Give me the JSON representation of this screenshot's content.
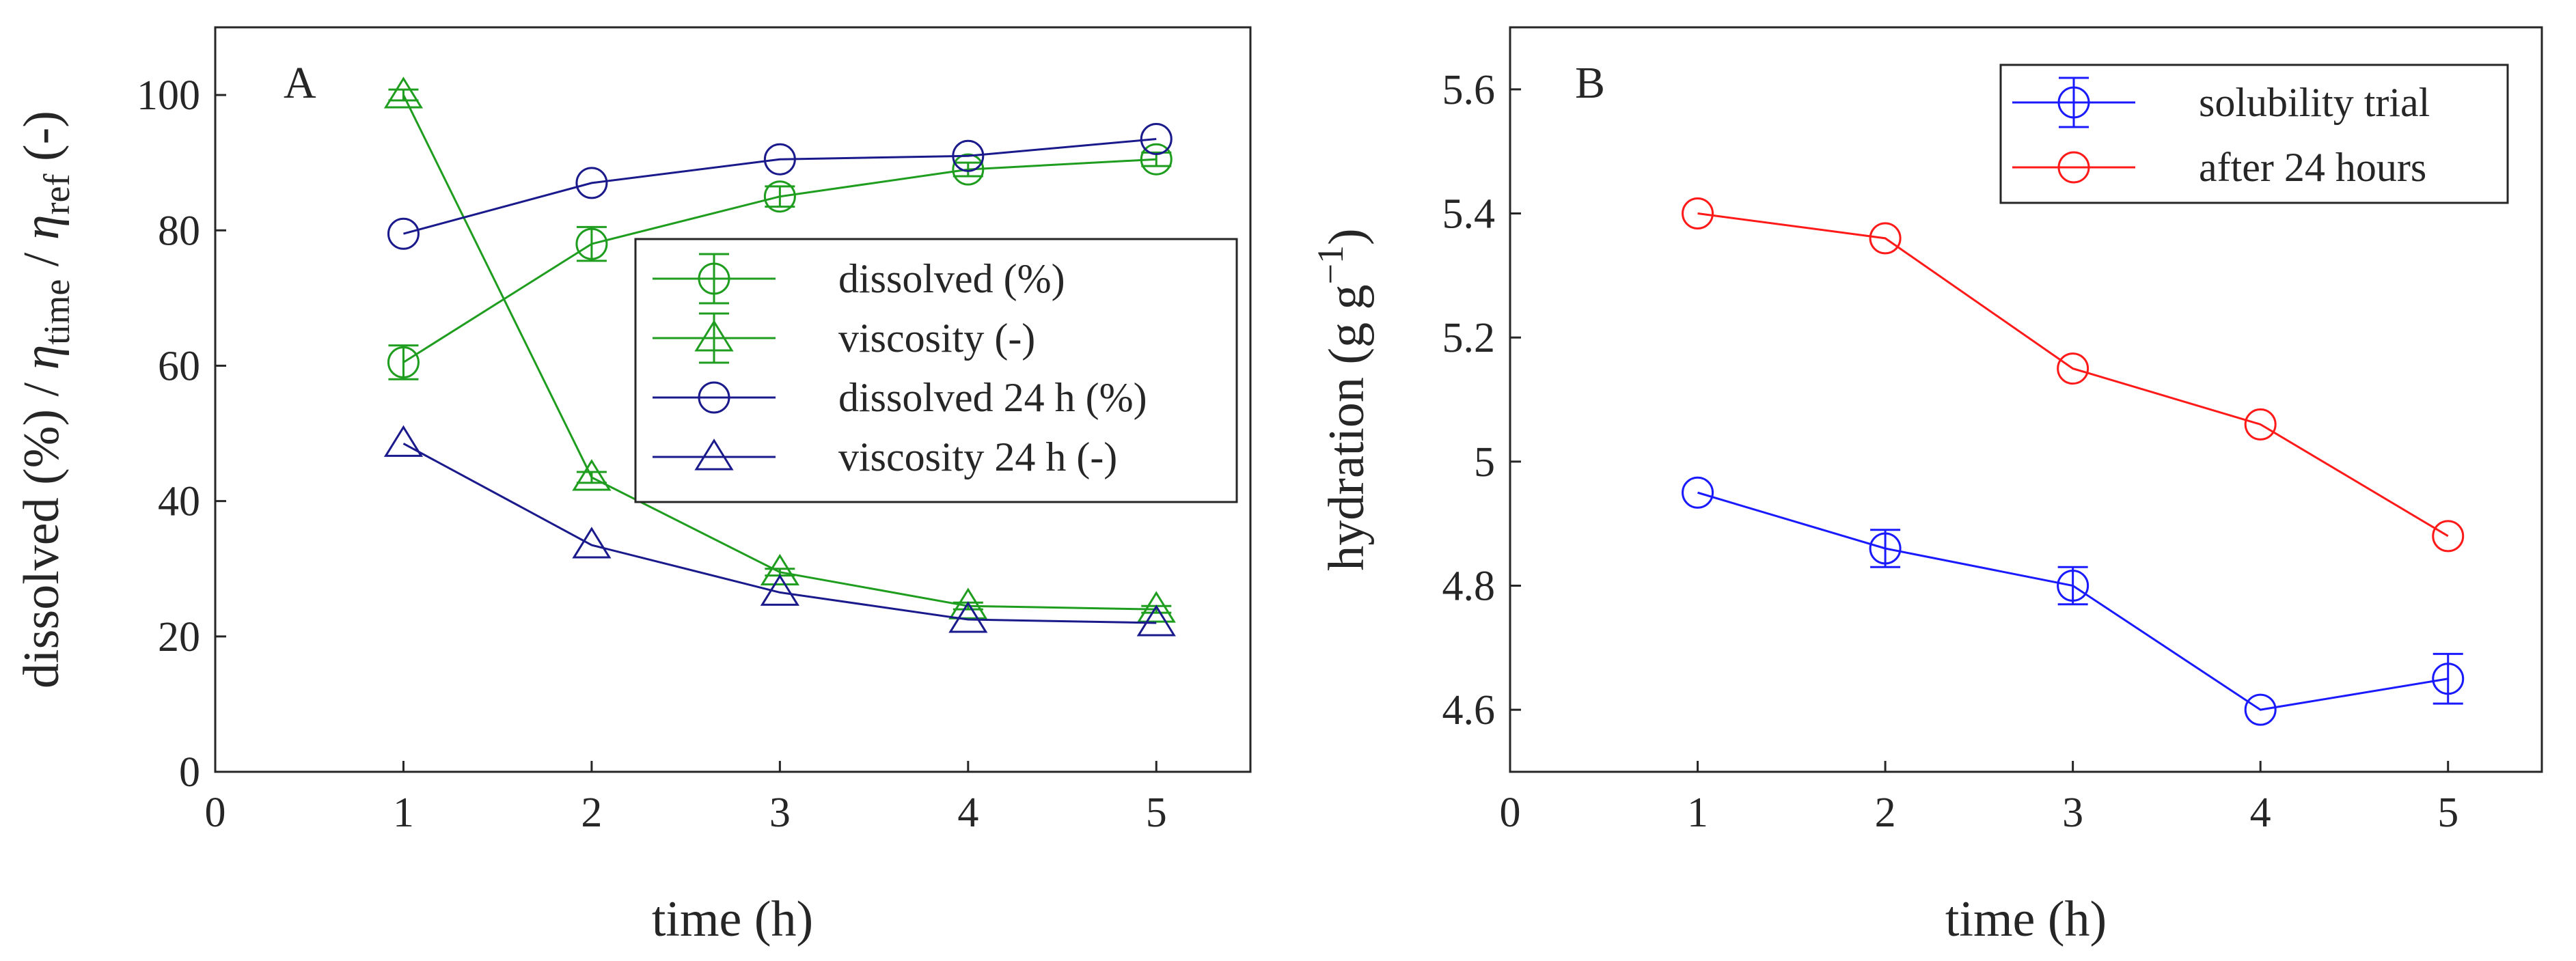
{
  "colors": {
    "green": "#1f9d1f",
    "navy": "#1a1a8c",
    "blue": "#1a1aff",
    "red": "#ff1a1a",
    "axis": "#262626"
  },
  "chart_data": [
    {
      "type": "line",
      "panel_label": "A",
      "xlabel": "time (h)",
      "ylabel": "dissolved (%) / η_time / η_ref (-)",
      "ylabel_parts": {
        "prefix": "dissolved (%) / ",
        "eta1": "η",
        "sub1": "time",
        "middle": " / ",
        "eta2": "η",
        "sub2": "ref",
        "suffix": " (-)"
      },
      "xlim": [
        0,
        5.5
      ],
      "ylim": [
        0,
        110
      ],
      "xticks": [
        "0",
        "1",
        "2",
        "3",
        "4",
        "5"
      ],
      "yticks": [
        "0",
        "20",
        "40",
        "60",
        "80",
        "100"
      ],
      "legend_position": "center-right",
      "x": [
        1,
        2,
        3,
        4,
        5
      ],
      "series": [
        {
          "name": "dissolved (%)",
          "color": "green",
          "marker": "circle",
          "values": [
            60.5,
            78,
            85,
            89,
            90.5
          ],
          "errors": [
            2.5,
            2.5,
            1.5,
            1.0,
            1.0
          ]
        },
        {
          "name": "viscosity (-)",
          "color": "green",
          "marker": "triangle",
          "values": [
            100,
            43.5,
            29.5,
            24.5,
            24
          ],
          "errors": [
            0.8,
            0.8,
            0.5,
            0.5,
            0.5
          ]
        },
        {
          "name": "dissolved 24 h (%)",
          "color": "navy",
          "marker": "circle",
          "values": [
            79.5,
            87,
            90.5,
            91,
            93.5
          ],
          "errors": []
        },
        {
          "name": "viscosity 24 h (-)",
          "color": "navy",
          "marker": "triangle",
          "values": [
            48.5,
            33.5,
            26.5,
            22.5,
            22
          ],
          "errors": []
        }
      ]
    },
    {
      "type": "line",
      "panel_label": "B",
      "xlabel": "time (h)",
      "ylabel": "hydration (g g⁻¹)",
      "ylabel_parts": {
        "prefix": "hydration (g g",
        "sup": "−1",
        "suffix": ")"
      },
      "xlim": [
        0,
        5.5
      ],
      "ylim": [
        4.5,
        5.7
      ],
      "xticks": [
        "0",
        "1",
        "2",
        "3",
        "4",
        "5"
      ],
      "yticks": [
        "4.6",
        "4.8",
        "5",
        "5.2",
        "5.4",
        "5.6"
      ],
      "legend_position": "top-right",
      "x": [
        1,
        2,
        3,
        4,
        5
      ],
      "series": [
        {
          "name": "solubility trial",
          "color": "blue",
          "marker": "circle",
          "values": [
            4.95,
            4.86,
            4.8,
            4.6,
            4.65
          ],
          "errors": [
            0.0,
            0.03,
            0.03,
            0.0,
            0.04
          ]
        },
        {
          "name": "after 24 hours",
          "color": "red",
          "marker": "circle",
          "values": [
            5.4,
            5.36,
            5.15,
            5.06,
            4.88
          ],
          "errors": []
        }
      ]
    }
  ]
}
